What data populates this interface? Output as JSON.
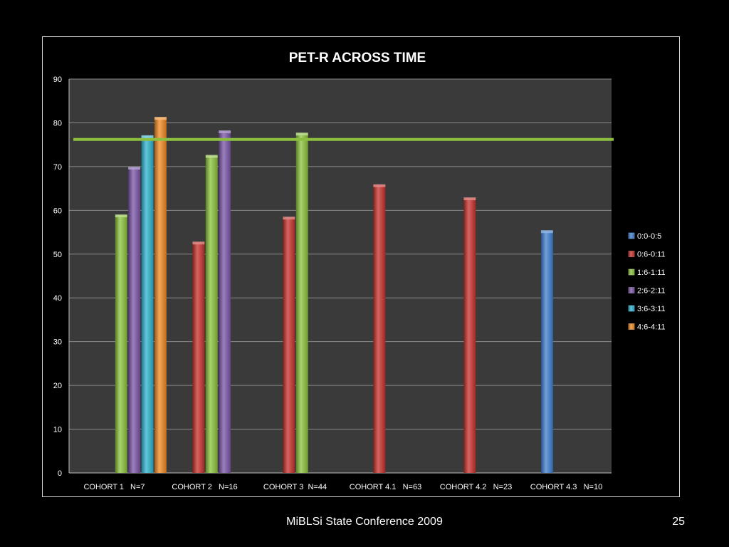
{
  "footer": {
    "label": "MiBLSi State Conference 2009",
    "page_number": "25"
  },
  "chart_data": {
    "type": "bar",
    "title": "PET-R ACROSS TIME",
    "xlabel": "",
    "ylabel": "",
    "ylim": [
      0,
      90
    ],
    "yticks": [
      0,
      10,
      20,
      30,
      40,
      50,
      60,
      70,
      80,
      90
    ],
    "categories": [
      "COHORT 1   N=7",
      "COHORT 2   N=16",
      "COHORT 3  N=44",
      "COHORT 4.1   N=63",
      "COHORT 4.2   N=23",
      "COHORT 4.3   N=10"
    ],
    "series": [
      {
        "name": "0:0-0:5",
        "color": "#3f7fd0",
        "values": [
          null,
          null,
          null,
          null,
          null,
          55.3
        ]
      },
      {
        "name": "0:6-0:11",
        "color": "#c8312c",
        "values": [
          null,
          52.7,
          58.4,
          65.8,
          62.8,
          null
        ]
      },
      {
        "name": "1:6-1:11",
        "color": "#8cc43c",
        "values": [
          58.9,
          72.5,
          77.6,
          null,
          null,
          null
        ]
      },
      {
        "name": "2:6-2:11",
        "color": "#7b55a8",
        "values": [
          69.8,
          78.1,
          null,
          null,
          null,
          null
        ]
      },
      {
        "name": "3:6-3:11",
        "color": "#2fb3cf",
        "values": [
          77.0,
          null,
          null,
          null,
          null,
          null
        ]
      },
      {
        "name": "4:6-4:11",
        "color": "#f28a22",
        "values": [
          81.2,
          null,
          null,
          null,
          null,
          null
        ]
      }
    ],
    "reference_line": {
      "value": 76.2,
      "color": "#8cbf3f"
    },
    "grid": true,
    "legend_position": "right",
    "plot_background": "#3a3a3a",
    "text_color": "#ffffff"
  }
}
